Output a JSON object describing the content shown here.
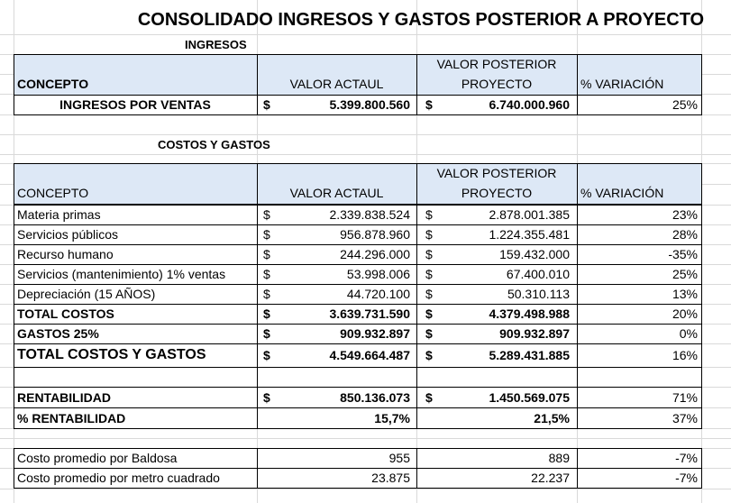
{
  "title": "CONSOLIDADO INGRESOS Y GASTOS POSTERIOR A PROYECTO",
  "currency": "$",
  "ingresos": {
    "label": "INGRESOS",
    "header": {
      "concept": "CONCEPTO",
      "current": "VALOR ACTAUL",
      "posterior": [
        "VALOR POSTERIOR",
        "PROYECTO"
      ],
      "variation": "% VARIACIÓN"
    },
    "rows": [
      {
        "concept": "INGRESOS POR VENTAS",
        "current": "5.399.800.560",
        "posterior": "6.740.000.960",
        "variation": "25%"
      }
    ]
  },
  "costos": {
    "label": "COSTOS Y GASTOS",
    "header": {
      "concept": "CONCEPTO",
      "current": "VALOR ACTAUL",
      "posterior": [
        "VALOR POSTERIOR",
        "PROYECTO"
      ],
      "variation": "% VARIACIÓN"
    },
    "rows": [
      {
        "concept": "Materia primas",
        "current": "2.339.838.524",
        "posterior": "2.878.001.385",
        "variation": "23%"
      },
      {
        "concept": "Servicios públicos",
        "current": "956.878.960",
        "posterior": "1.224.355.481",
        "variation": "28%"
      },
      {
        "concept": "Recurso humano",
        "current": "244.296.000",
        "posterior": "159.432.000",
        "variation": "-35%"
      },
      {
        "concept": "Servicios (mantenimiento) 1% ventas",
        "current": "53.998.006",
        "posterior": "67.400.010",
        "variation": "25%"
      },
      {
        "concept": "Depreciación (15 AÑOS)",
        "current": "44.720.100",
        "posterior": "50.310.113",
        "variation": "13%"
      },
      {
        "concept": "TOTAL COSTOS",
        "current": "3.639.731.590",
        "posterior": "4.379.498.988",
        "variation": "20%"
      },
      {
        "concept": "GASTOS 25%",
        "current": "909.932.897",
        "posterior": "909.932.897",
        "variation": "0%"
      },
      {
        "concept": "TOTAL COSTOS Y GASTOS",
        "current": "4.549.664.487",
        "posterior": "5.289.431.885",
        "variation": "16%"
      },
      {
        "concept": "RENTABILIDAD",
        "current": "850.136.073",
        "posterior": "1.450.569.075",
        "variation": "71%"
      },
      {
        "concept": "% RENTABILIDAD",
        "current": "15,7%",
        "posterior": "21,5%",
        "variation": "37%"
      }
    ]
  },
  "promedios": {
    "rows": [
      {
        "concept": "Costo promedio por Baldosa",
        "current": "955",
        "posterior": "889",
        "variation": "-7%"
      },
      {
        "concept": "Costo promedio por metro cuadrado",
        "current": "23.875",
        "posterior": "22.237",
        "variation": "-7%"
      }
    ]
  }
}
